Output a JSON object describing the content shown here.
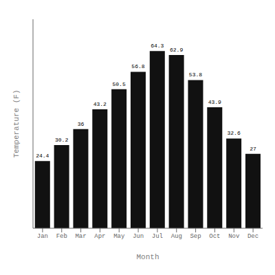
{
  "chart_data": {
    "type": "bar",
    "categories": [
      "Jan",
      "Feb",
      "Mar",
      "Apr",
      "May",
      "Jun",
      "Jul",
      "Aug",
      "Sep",
      "Oct",
      "Nov",
      "Dec"
    ],
    "values": [
      24.4,
      30.2,
      36.0,
      43.2,
      50.5,
      56.8,
      64.3,
      62.9,
      53.8,
      43.9,
      32.6,
      27.0
    ],
    "color": "#111111",
    "xlabel": "Month",
    "ylabel": "Temperature (F)",
    "ylim": [
      0,
      75.874
    ],
    "tick_labels": "x",
    "data_labels": true,
    "grid": false
  }
}
